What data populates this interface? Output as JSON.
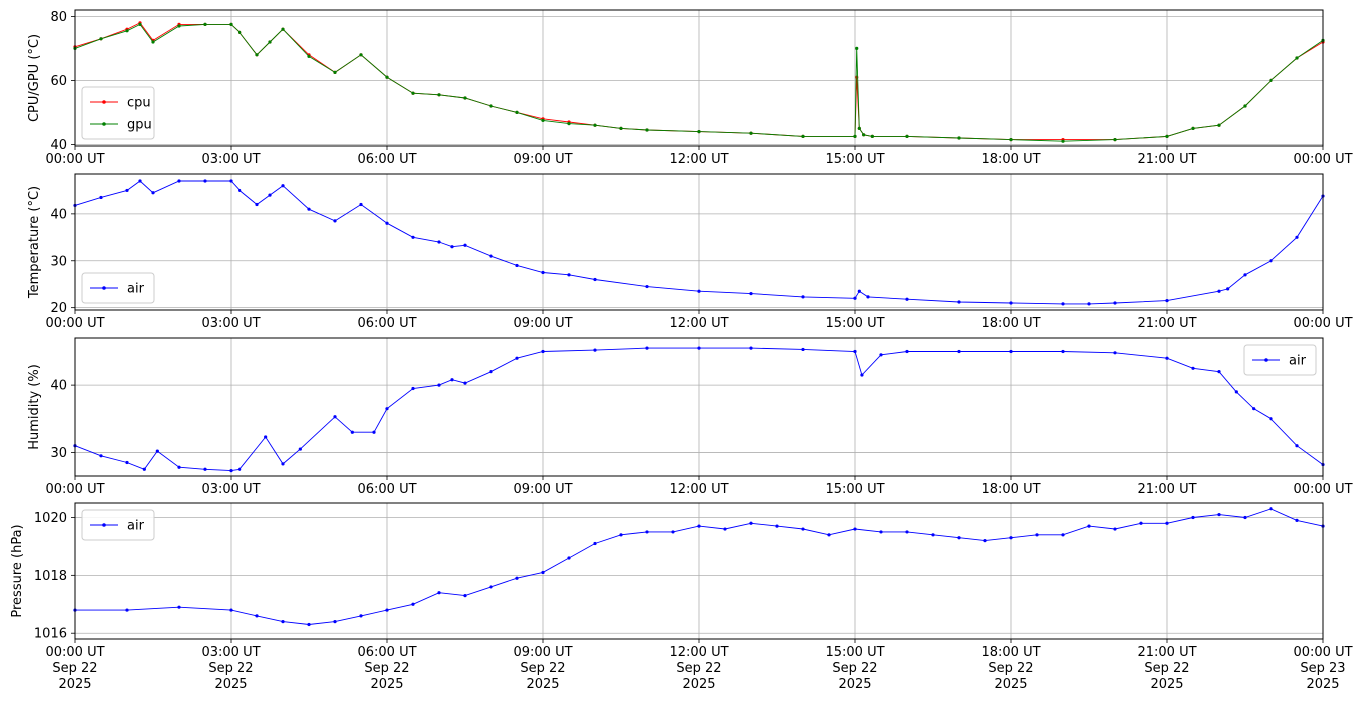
{
  "chart_data": [
    {
      "type": "line",
      "ylabel": "CPU/GPU (°C)",
      "xlim": [
        "00:00",
        "24:00"
      ],
      "ylim": [
        39.5,
        82
      ],
      "yticks": [
        "40",
        "60",
        "80"
      ],
      "xtick_labels": [
        "00:00 UT",
        "03:00 UT",
        "06:00 UT",
        "09:00 UT",
        "12:00 UT",
        "15:00 UT",
        "18:00 UT",
        "21:00 UT",
        "00:00 UT"
      ],
      "grid": true,
      "legend_position": "lower-left",
      "series": [
        {
          "name": "cpu",
          "color": "#ff0000",
          "x": [
            "00:00",
            "00:30",
            "01:00",
            "01:15",
            "01:30",
            "02:00",
            "02:30",
            "03:00",
            "03:10",
            "03:30",
            "03:45",
            "04:00",
            "04:30",
            "05:00",
            "05:30",
            "06:00",
            "06:30",
            "07:00",
            "07:30",
            "08:00",
            "08:30",
            "09:00",
            "09:30",
            "10:00",
            "10:30",
            "11:00",
            "12:00",
            "13:00",
            "14:00",
            "15:00",
            "15:02",
            "15:05",
            "15:10",
            "15:20",
            "16:00",
            "17:00",
            "18:00",
            "19:00",
            "20:00",
            "21:00",
            "21:30",
            "22:00",
            "22:30",
            "23:00",
            "23:30",
            "24:00"
          ],
          "y": [
            70.5,
            73,
            76,
            78,
            72.5,
            77.5,
            77.5,
            77.5,
            75,
            68,
            72,
            76,
            68,
            62.5,
            68,
            61,
            56,
            55.5,
            54.5,
            52,
            50,
            48,
            47,
            46,
            45,
            44.5,
            44,
            43.5,
            42.5,
            42.5,
            61,
            45,
            43,
            42.5,
            42.5,
            42,
            41.5,
            41.5,
            41.5,
            42.5,
            45,
            46,
            52,
            60,
            67,
            72
          ]
        },
        {
          "name": "gpu",
          "color": "#008000",
          "x": [
            "00:00",
            "00:30",
            "01:00",
            "01:15",
            "01:30",
            "02:00",
            "02:30",
            "03:00",
            "03:10",
            "03:30",
            "03:45",
            "04:00",
            "04:30",
            "05:00",
            "05:30",
            "06:00",
            "06:30",
            "07:00",
            "07:30",
            "08:00",
            "08:30",
            "09:00",
            "09:30",
            "10:00",
            "10:30",
            "11:00",
            "12:00",
            "13:00",
            "14:00",
            "15:00",
            "15:02",
            "15:05",
            "15:10",
            "15:20",
            "16:00",
            "17:00",
            "18:00",
            "19:00",
            "20:00",
            "21:00",
            "21:30",
            "22:00",
            "22:30",
            "23:00",
            "23:30",
            "24:00"
          ],
          "y": [
            70,
            73,
            75.5,
            77.5,
            72,
            77,
            77.5,
            77.5,
            75,
            68,
            72,
            76,
            67.5,
            62.5,
            68,
            61,
            56,
            55.5,
            54.5,
            52,
            50,
            47.5,
            46.5,
            46,
            45,
            44.5,
            44,
            43.5,
            42.5,
            42.5,
            70,
            45,
            43,
            42.5,
            42.5,
            42,
            41.5,
            41,
            41.5,
            42.5,
            45,
            46,
            52,
            60,
            67,
            72.5
          ]
        }
      ]
    },
    {
      "type": "line",
      "ylabel": "Temperature (°C)",
      "xlim": [
        "00:00",
        "24:00"
      ],
      "ylim": [
        19.5,
        48.5
      ],
      "yticks": [
        "20",
        "30",
        "40"
      ],
      "xtick_labels": [
        "00:00 UT",
        "03:00 UT",
        "06:00 UT",
        "09:00 UT",
        "12:00 UT",
        "15:00 UT",
        "18:00 UT",
        "21:00 UT",
        "00:00 UT"
      ],
      "grid": true,
      "legend_position": "lower-left",
      "series": [
        {
          "name": "air",
          "color": "#0000ff",
          "x": [
            "00:00",
            "00:30",
            "01:00",
            "01:15",
            "01:30",
            "02:00",
            "02:30",
            "03:00",
            "03:10",
            "03:30",
            "03:45",
            "04:00",
            "04:30",
            "05:00",
            "05:30",
            "06:00",
            "06:30",
            "07:00",
            "07:15",
            "07:30",
            "08:00",
            "08:30",
            "09:00",
            "09:30",
            "10:00",
            "11:00",
            "12:00",
            "13:00",
            "14:00",
            "15:00",
            "15:05",
            "15:15",
            "16:00",
            "17:00",
            "18:00",
            "19:00",
            "19:30",
            "20:00",
            "21:00",
            "22:00",
            "22:10",
            "22:30",
            "23:00",
            "23:30",
            "24:00"
          ],
          "y": [
            41.8,
            43.5,
            45,
            47,
            44.5,
            47,
            47,
            47,
            45,
            42,
            44,
            46,
            41,
            38.5,
            42,
            38,
            35,
            34,
            33,
            33.3,
            31,
            29,
            27.5,
            27,
            26,
            24.5,
            23.5,
            23,
            22.3,
            22,
            23.5,
            22.3,
            21.8,
            21.2,
            21,
            20.8,
            20.8,
            21,
            21.5,
            23.5,
            24,
            27,
            30,
            35,
            43.8
          ]
        }
      ]
    },
    {
      "type": "line",
      "ylabel": "Humidity (%)",
      "xlim": [
        "00:00",
        "24:00"
      ],
      "ylim": [
        26.5,
        47
      ],
      "yticks": [
        "30",
        "40"
      ],
      "xtick_labels": [
        "00:00 UT",
        "03:00 UT",
        "06:00 UT",
        "09:00 UT",
        "12:00 UT",
        "15:00 UT",
        "18:00 UT",
        "21:00 UT",
        "00:00 UT"
      ],
      "grid": true,
      "legend_position": "upper-right",
      "series": [
        {
          "name": "air",
          "color": "#0000ff",
          "x": [
            "00:00",
            "00:30",
            "01:00",
            "01:20",
            "01:35",
            "02:00",
            "02:30",
            "03:00",
            "03:10",
            "03:40",
            "04:00",
            "04:20",
            "05:00",
            "05:20",
            "05:45",
            "06:00",
            "06:30",
            "07:00",
            "07:15",
            "07:30",
            "08:00",
            "08:30",
            "09:00",
            "10:00",
            "11:00",
            "12:00",
            "13:00",
            "14:00",
            "15:00",
            "15:08",
            "15:30",
            "16:00",
            "17:00",
            "18:00",
            "19:00",
            "20:00",
            "21:00",
            "21:30",
            "22:00",
            "22:20",
            "22:40",
            "23:00",
            "23:30",
            "24:00"
          ],
          "y": [
            31,
            29.5,
            28.5,
            27.5,
            30.2,
            27.8,
            27.5,
            27.3,
            27.5,
            32.3,
            28.3,
            30.5,
            35.3,
            33,
            33,
            36.5,
            39.5,
            40,
            40.8,
            40.3,
            42,
            44,
            45,
            45.2,
            45.5,
            45.5,
            45.5,
            45.3,
            45,
            41.5,
            44.5,
            45,
            45,
            45,
            45,
            44.8,
            44,
            42.5,
            42,
            39,
            36.5,
            35,
            31,
            28.2
          ]
        }
      ]
    },
    {
      "type": "line",
      "ylabel": "Pressure (hPa)",
      "xlim": [
        "00:00",
        "24:00"
      ],
      "ylim": [
        1015.8,
        1020.5
      ],
      "yticks": [
        "1016",
        "1018",
        "1020"
      ],
      "xtick_labels": [
        "00:00 UT\nSep 22\n2025",
        "03:00 UT\nSep 22\n2025",
        "06:00 UT\nSep 22\n2025",
        "09:00 UT\nSep 22\n2025",
        "12:00 UT\nSep 22\n2025",
        "15:00 UT\nSep 22\n2025",
        "18:00 UT\nSep 22\n2025",
        "21:00 UT\nSep 22\n2025",
        "00:00 UT\nSep 23\n2025"
      ],
      "grid": true,
      "legend_position": "upper-left",
      "series": [
        {
          "name": "air",
          "color": "#0000ff",
          "x": [
            "00:00",
            "01:00",
            "02:00",
            "03:00",
            "03:30",
            "04:00",
            "04:30",
            "05:00",
            "05:30",
            "06:00",
            "06:30",
            "07:00",
            "07:30",
            "08:00",
            "08:30",
            "09:00",
            "09:30",
            "10:00",
            "10:30",
            "11:00",
            "11:30",
            "12:00",
            "12:30",
            "13:00",
            "13:30",
            "14:00",
            "14:30",
            "15:00",
            "15:30",
            "16:00",
            "16:30",
            "17:00",
            "17:30",
            "18:00",
            "18:30",
            "19:00",
            "19:30",
            "20:00",
            "20:30",
            "21:00",
            "21:30",
            "22:00",
            "22:30",
            "23:00",
            "23:30",
            "24:00"
          ],
          "y": [
            1016.8,
            1016.8,
            1016.9,
            1016.8,
            1016.6,
            1016.4,
            1016.3,
            1016.4,
            1016.6,
            1016.8,
            1017,
            1017.4,
            1017.3,
            1017.6,
            1017.9,
            1018.1,
            1018.6,
            1019.1,
            1019.4,
            1019.5,
            1019.5,
            1019.7,
            1019.6,
            1019.8,
            1019.7,
            1019.6,
            1019.4,
            1019.6,
            1019.5,
            1019.5,
            1019.4,
            1019.3,
            1019.2,
            1019.3,
            1019.4,
            1019.4,
            1019.7,
            1019.6,
            1019.8,
            1019.8,
            1020,
            1020.1,
            1020,
            1020.3,
            1019.9,
            1019.7
          ]
        }
      ]
    }
  ]
}
